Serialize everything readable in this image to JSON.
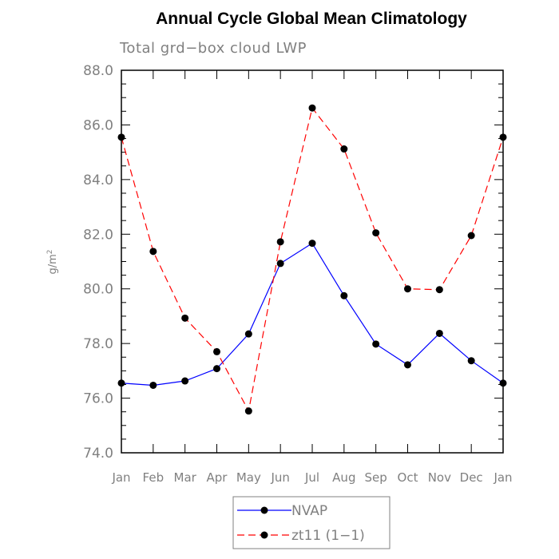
{
  "chart_data": {
    "type": "line",
    "title": "Annual Cycle Global Mean Climatology",
    "subtitle": "Total grd−box cloud LWP",
    "ylabel_base": "g/m",
    "ylabel_sup": "2",
    "xlabel": "",
    "ylim": [
      74.0,
      88.0
    ],
    "yticks": [
      "74.0",
      "76.0",
      "78.0",
      "80.0",
      "82.0",
      "84.0",
      "86.0",
      "88.0"
    ],
    "categories": [
      "Jan",
      "Feb",
      "Mar",
      "Apr",
      "May",
      "Jun",
      "Jul",
      "Aug",
      "Sep",
      "Oct",
      "Nov",
      "Dec",
      "Jan"
    ],
    "series": [
      {
        "name": "NVAP",
        "color": "#0000ff",
        "dash": "solid",
        "values": [
          76.55,
          76.47,
          76.63,
          77.08,
          78.35,
          80.93,
          81.67,
          79.75,
          77.98,
          77.22,
          78.37,
          77.37,
          76.55
        ]
      },
      {
        "name": "zt11 (1−1)",
        "color": "#ff0000",
        "dash": "dashed",
        "values": [
          85.55,
          81.37,
          78.93,
          77.7,
          75.53,
          81.72,
          86.62,
          85.12,
          82.05,
          80.0,
          79.97,
          81.95,
          85.55
        ]
      }
    ],
    "legend_position": "bottom-center",
    "grid": false
  }
}
